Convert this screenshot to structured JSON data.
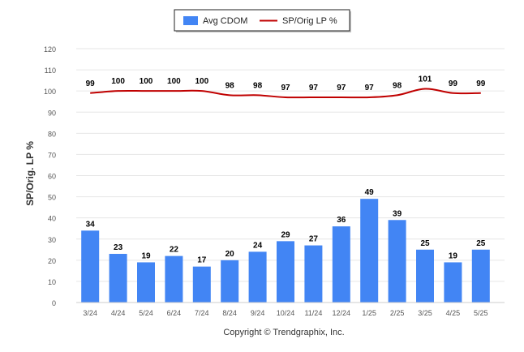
{
  "chart_data": {
    "type": "bar",
    "categories": [
      "3/24",
      "4/24",
      "5/24",
      "6/24",
      "7/24",
      "8/24",
      "9/24",
      "10/24",
      "11/24",
      "12/24",
      "1/25",
      "2/25",
      "3/25",
      "4/25",
      "5/25"
    ],
    "series": [
      {
        "name": "Avg CDOM",
        "type": "bar",
        "color": "#4285F4",
        "values": [
          34,
          23,
          19,
          22,
          17,
          20,
          24,
          29,
          27,
          36,
          49,
          39,
          25,
          19,
          25
        ]
      },
      {
        "name": "SP/Orig LP %",
        "type": "line",
        "color": "#C00000",
        "values": [
          99,
          100,
          100,
          100,
          100,
          98,
          98,
          97,
          97,
          97,
          97,
          98,
          101,
          99,
          99
        ]
      }
    ],
    "ylabel": "SP/Orig. LP %",
    "ylim": [
      0,
      120
    ],
    "yticks": [
      0,
      10,
      20,
      30,
      40,
      50,
      60,
      70,
      80,
      90,
      100,
      110,
      120
    ],
    "grid": true,
    "legend_position": "top-center",
    "footer": "Copyright © Trendgraphix, Inc."
  }
}
